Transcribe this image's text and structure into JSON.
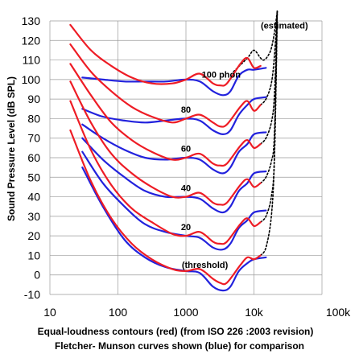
{
  "chart_data": {
    "type": "line",
    "x_scale": "log",
    "xlim": [
      10,
      100000
    ],
    "ylim": [
      -10,
      130
    ],
    "grid": true,
    "ylabel": "Sound Pressure Level (dB SPL)",
    "xlabel_line1": "Equal-loudness contours (red) (from ISO 226 :2003 revision)",
    "xlabel_line2": "Fletcher- Munson curves shown (blue) for comparison",
    "x_ticks": [
      {
        "value": 10,
        "label": "10"
      },
      {
        "value": 100,
        "label": "100"
      },
      {
        "value": 1000,
        "label": "1000"
      },
      {
        "value": 10000,
        "label": "10k"
      },
      {
        "value": 100000,
        "label": "100k"
      }
    ],
    "y_ticks": [
      -10,
      0,
      10,
      20,
      30,
      40,
      50,
      60,
      70,
      80,
      90,
      100,
      110,
      120,
      130
    ],
    "annotations": [
      {
        "text": "(estimated)",
        "x": 28000,
        "y": 126
      },
      {
        "text": "100 phon",
        "x": 3300,
        "y": 101
      },
      {
        "text": "80",
        "x": 1000,
        "y": 83
      },
      {
        "text": "60",
        "x": 1000,
        "y": 63
      },
      {
        "text": "40",
        "x": 1000,
        "y": 43
      },
      {
        "text": "20",
        "x": 1000,
        "y": 23
      },
      {
        "text": "(threshold)",
        "x": 1900,
        "y": 3.5
      }
    ],
    "colors": {
      "iso": "#ee1c25",
      "fletcher": "#2222dd",
      "estimated": "#000000"
    },
    "series": [
      {
        "group": "iso",
        "x": [
          20,
          40,
          80,
          160,
          315,
          630,
          1000,
          1600,
          2500,
          3150,
          4000,
          6300,
          8000,
          10000,
          12500
        ],
        "y": [
          128,
          115,
          107,
          101,
          98,
          98,
          100,
          103,
          98,
          97,
          98,
          108,
          111,
          106,
          107
        ]
      },
      {
        "group": "iso",
        "x": [
          20,
          40,
          80,
          160,
          315,
          630,
          1000,
          1600,
          2500,
          3150,
          4000,
          6300,
          8000,
          10000,
          12500
        ],
        "y": [
          118,
          104,
          94,
          86,
          81,
          78,
          80,
          82,
          78,
          76,
          77,
          86,
          89,
          84,
          87
        ]
      },
      {
        "group": "iso",
        "x": [
          20,
          40,
          80,
          160,
          315,
          630,
          1000,
          1600,
          2500,
          3150,
          4000,
          6300,
          8000,
          10000,
          12500
        ],
        "y": [
          108,
          92,
          78,
          69,
          63,
          59,
          60,
          62,
          57,
          56,
          57,
          66,
          69,
          65,
          67
        ]
      },
      {
        "group": "iso",
        "x": [
          20,
          40,
          80,
          160,
          315,
          630,
          1000,
          1600,
          2500,
          3150,
          4000,
          6300,
          8000,
          10000,
          12500
        ],
        "y": [
          99,
          78,
          62,
          52,
          45,
          40,
          40,
          42,
          37,
          36,
          37,
          46,
          49,
          45,
          47
        ]
      },
      {
        "group": "iso",
        "x": [
          20,
          40,
          80,
          160,
          315,
          630,
          1000,
          1600,
          2500,
          3150,
          4000,
          6300,
          8000,
          10000,
          12500
        ],
        "y": [
          89,
          64,
          46,
          34,
          27,
          21,
          20,
          22,
          17,
          16,
          17,
          26,
          29,
          25,
          27
        ]
      },
      {
        "group": "iso",
        "x": [
          20,
          40,
          80,
          160,
          315,
          630,
          1000,
          1600,
          2500,
          3150,
          4000,
          6300,
          8000,
          10000,
          12500
        ],
        "y": [
          74,
          48,
          29,
          16,
          8,
          3,
          2,
          3,
          -2,
          -4,
          -4,
          5,
          9,
          8,
          10
        ]
      },
      {
        "group": "fletcher",
        "x": [
          30,
          60,
          125,
          250,
          500,
          1000,
          1600,
          2500,
          3500,
          4500,
          6000,
          8000,
          10000,
          15000
        ],
        "y": [
          101,
          100,
          99,
          99,
          99,
          100,
          99,
          94,
          92,
          94,
          102,
          105,
          105,
          106
        ]
      },
      {
        "group": "fletcher",
        "x": [
          30,
          60,
          125,
          250,
          500,
          1000,
          1600,
          2500,
          3500,
          4500,
          6000,
          8000,
          10000,
          15000
        ],
        "y": [
          85,
          81,
          79,
          78,
          79,
          80,
          79,
          74,
          72,
          74,
          82,
          87,
          90,
          91
        ]
      },
      {
        "group": "fletcher",
        "x": [
          30,
          60,
          125,
          250,
          500,
          1000,
          1600,
          2500,
          3500,
          4500,
          6000,
          8000,
          10000,
          15000
        ],
        "y": [
          77,
          70,
          64,
          60,
          59,
          60,
          59,
          54,
          52,
          55,
          63,
          67,
          72,
          73
        ]
      },
      {
        "group": "fletcher",
        "x": [
          30,
          60,
          125,
          250,
          500,
          1000,
          1600,
          2500,
          3500,
          4500,
          6000,
          8000,
          10000,
          15000
        ],
        "y": [
          70,
          59,
          50,
          43,
          40,
          40,
          39,
          34,
          32,
          35,
          43,
          47,
          52,
          53
        ]
      },
      {
        "group": "fletcher",
        "x": [
          30,
          60,
          125,
          250,
          500,
          1000,
          1600,
          2500,
          3500,
          4500,
          6000,
          8000,
          10000,
          15000
        ],
        "y": [
          63,
          47,
          35,
          26,
          22,
          20,
          19,
          14,
          13,
          16,
          24,
          28,
          32,
          33
        ]
      },
      {
        "group": "fletcher",
        "x": [
          30,
          60,
          125,
          250,
          500,
          1000,
          1600,
          2500,
          3500,
          4500,
          6000,
          8000,
          10000,
          15000
        ],
        "y": [
          55,
          35,
          18,
          9,
          4,
          2,
          1,
          -6,
          -8,
          -6,
          2,
          6,
          8,
          9
        ]
      },
      {
        "group": "estimated",
        "x": [
          5000,
          8000,
          10000,
          12500,
          14000,
          16000,
          18000,
          20000,
          22000
        ],
        "y": [
          104,
          111,
          115,
          111,
          110,
          112,
          116,
          124,
          135
        ]
      },
      {
        "group": "estimated",
        "x": [
          12500,
          15000,
          18000,
          20000,
          22000
        ],
        "y": [
          87,
          90,
          98,
          112,
          135
        ]
      },
      {
        "group": "estimated",
        "x": [
          12500,
          15000,
          18000,
          20000,
          22000
        ],
        "y": [
          67,
          70,
          78,
          92,
          135
        ]
      },
      {
        "group": "estimated",
        "x": [
          12500,
          15000,
          18000,
          20000,
          22000
        ],
        "y": [
          47,
          50,
          58,
          72,
          135
        ]
      },
      {
        "group": "estimated",
        "x": [
          12500,
          15000,
          18000,
          20000,
          22000
        ],
        "y": [
          27,
          30,
          40,
          60,
          135
        ]
      },
      {
        "group": "estimated",
        "x": [
          12500,
          15000,
          18000,
          20000,
          22000
        ],
        "y": [
          10,
          14,
          30,
          60,
          135
        ]
      }
    ]
  }
}
